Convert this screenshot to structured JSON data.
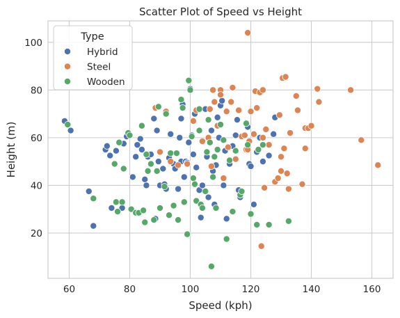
{
  "chart_data": {
    "type": "scatter",
    "title": "Scatter Plot of Speed vs Height",
    "xlabel": "Speed (kph)",
    "ylabel": "Height (m)",
    "xlim": [
      53,
      167
    ],
    "ylim": [
      1,
      109
    ],
    "xticks": [
      60,
      80,
      100,
      120,
      140,
      160
    ],
    "yticks": [
      20,
      40,
      60,
      80,
      100
    ],
    "grid": true,
    "legend": {
      "title": "Type",
      "placement": "top-left"
    },
    "series": [
      {
        "name": "Hybrid",
        "color": "#4c72b0",
        "points": [
          [
            58.5,
            67
          ],
          [
            60.5,
            63
          ],
          [
            66.5,
            37.5
          ],
          [
            68,
            23
          ],
          [
            72,
            55
          ],
          [
            72.5,
            56.5
          ],
          [
            73.5,
            52.5
          ],
          [
            74,
            30.5
          ],
          [
            75.5,
            54.5
          ],
          [
            77.5,
            30.5
          ],
          [
            78,
            57.5
          ],
          [
            79,
            60.5
          ],
          [
            81,
            43.5
          ],
          [
            82.5,
            57
          ],
          [
            82,
            52
          ],
          [
            83.5,
            59.5
          ],
          [
            84,
            55
          ],
          [
            85,
            42.5
          ],
          [
            85.5,
            40
          ],
          [
            86,
            52
          ],
          [
            87,
            53
          ],
          [
            88.5,
            26
          ],
          [
            89,
            63
          ],
          [
            89.5,
            50
          ],
          [
            90,
            40
          ],
          [
            91,
            47
          ],
          [
            91.5,
            40.5
          ],
          [
            92,
            38.5
          ],
          [
            93,
            51.5
          ],
          [
            93.5,
            61.5
          ],
          [
            94.5,
            49
          ],
          [
            95,
            47
          ],
          [
            96,
            38.5
          ],
          [
            96.5,
            60
          ],
          [
            97,
            50
          ],
          [
            97,
            68
          ],
          [
            97.5,
            74
          ],
          [
            98,
            43.5
          ],
          [
            98.5,
            50
          ],
          [
            99,
            49.5
          ],
          [
            99.5,
            58
          ],
          [
            100,
            80.5
          ],
          [
            100.5,
            61
          ],
          [
            101,
            53
          ],
          [
            101.5,
            70
          ],
          [
            102,
            47.5
          ],
          [
            103,
            38
          ],
          [
            103.5,
            26.5
          ],
          [
            104,
            40
          ],
          [
            105,
            72
          ],
          [
            105.5,
            52
          ],
          [
            106,
            35
          ],
          [
            107,
            63
          ],
          [
            107.5,
            46
          ],
          [
            108,
            32
          ],
          [
            108.5,
            48.5
          ],
          [
            109,
            68.5
          ],
          [
            109.5,
            60
          ],
          [
            110,
            73.5
          ],
          [
            110.5,
            75.5
          ],
          [
            111,
            40
          ],
          [
            111.5,
            54.5
          ],
          [
            112,
            26
          ],
          [
            113,
            49
          ],
          [
            114,
            56.5
          ],
          [
            115,
            61
          ],
          [
            116,
            38
          ],
          [
            116.5,
            35
          ],
          [
            119,
            64.5
          ],
          [
            119.5,
            49
          ],
          [
            120,
            48
          ],
          [
            121,
            32
          ],
          [
            122,
            54
          ],
          [
            123,
            60
          ],
          [
            124,
            50
          ],
          [
            126,
            52.5
          ],
          [
            127.5,
            61.5
          ],
          [
            128,
            68.5
          ],
          [
            115.5,
            67.5
          ],
          [
            88,
            68
          ]
        ]
      },
      {
        "name": "Steel",
        "color": "#dd8452",
        "points": [
          [
            88.5,
            72.5
          ],
          [
            90,
            54
          ],
          [
            92,
            71
          ],
          [
            93.5,
            50
          ],
          [
            96,
            48.5
          ],
          [
            99,
            49
          ],
          [
            101,
            67
          ],
          [
            102,
            71.5
          ],
          [
            104,
            58.5
          ],
          [
            106,
            60
          ],
          [
            106.5,
            72
          ],
          [
            107,
            48
          ],
          [
            107.5,
            80
          ],
          [
            108,
            75
          ],
          [
            109,
            65
          ],
          [
            110,
            80
          ],
          [
            110,
            78
          ],
          [
            111,
            43
          ],
          [
            112,
            71
          ],
          [
            112.5,
            56
          ],
          [
            113.5,
            75
          ],
          [
            114,
            81
          ],
          [
            115,
            51
          ],
          [
            116,
            71.5
          ],
          [
            117,
            60.5
          ],
          [
            118,
            61
          ],
          [
            118.5,
            55
          ],
          [
            119,
            104
          ],
          [
            119.5,
            58.5
          ],
          [
            120,
            71
          ],
          [
            121,
            61.5
          ],
          [
            121.5,
            79.5
          ],
          [
            122,
            72.5
          ],
          [
            123,
            79
          ],
          [
            123.5,
            14.5
          ],
          [
            124,
            80
          ],
          [
            124.5,
            39
          ],
          [
            125,
            63.5
          ],
          [
            126,
            57
          ],
          [
            128,
            41.5
          ],
          [
            129,
            43
          ],
          [
            130,
            52
          ],
          [
            130,
            46
          ],
          [
            130.5,
            85
          ],
          [
            131,
            55.5
          ],
          [
            131.5,
            85.5
          ],
          [
            132,
            45
          ],
          [
            132.5,
            38.5
          ],
          [
            133,
            62
          ],
          [
            135,
            77.5
          ],
          [
            135.5,
            71.5
          ],
          [
            137,
            40.5
          ],
          [
            138,
            64
          ],
          [
            138,
            55.5
          ],
          [
            139,
            64
          ],
          [
            140,
            65
          ],
          [
            142,
            80.5
          ],
          [
            142.5,
            75
          ],
          [
            153,
            80
          ],
          [
            156.5,
            59
          ],
          [
            162,
            48.5
          ],
          [
            124,
            60
          ],
          [
            119,
            55
          ],
          [
            129.5,
            69.5
          ]
        ]
      },
      {
        "name": "Wooden",
        "color": "#55a868",
        "points": [
          [
            59.5,
            65.5
          ],
          [
            68,
            34.5
          ],
          [
            75,
            49
          ],
          [
            75.5,
            33
          ],
          [
            76,
            29
          ],
          [
            76.5,
            58
          ],
          [
            77.5,
            33
          ],
          [
            78,
            47
          ],
          [
            79.5,
            62
          ],
          [
            80,
            61
          ],
          [
            80.5,
            30
          ],
          [
            82,
            28.5
          ],
          [
            83,
            28.5
          ],
          [
            84,
            65
          ],
          [
            84.5,
            29.5
          ],
          [
            85,
            24.5
          ],
          [
            85.5,
            53
          ],
          [
            86,
            46
          ],
          [
            87,
            49
          ],
          [
            88,
            25.5
          ],
          [
            89,
            46
          ],
          [
            90,
            30.5
          ],
          [
            91.5,
            39.5
          ],
          [
            92,
            70
          ],
          [
            93,
            27.5
          ],
          [
            93.5,
            53.5
          ],
          [
            94.5,
            31.5
          ],
          [
            95.5,
            53.5
          ],
          [
            96,
            25.5
          ],
          [
            97,
            76
          ],
          [
            97.5,
            72.5
          ],
          [
            98,
            33
          ],
          [
            99,
            19.5
          ],
          [
            99.5,
            84
          ],
          [
            100,
            80
          ],
          [
            100.5,
            60.5
          ],
          [
            101,
            43
          ],
          [
            101.5,
            40.5
          ],
          [
            102,
            33.5
          ],
          [
            103,
            63
          ],
          [
            103.5,
            32
          ],
          [
            104,
            30.5
          ],
          [
            105,
            37.5
          ],
          [
            105.5,
            54
          ],
          [
            106,
            67.5
          ],
          [
            107,
            6
          ],
          [
            107.5,
            43.5
          ],
          [
            108,
            52
          ],
          [
            108.5,
            30.5
          ],
          [
            109,
            55
          ],
          [
            110,
            65.5
          ],
          [
            111,
            59
          ],
          [
            112,
            17.5
          ],
          [
            113,
            50.5
          ],
          [
            114,
            29
          ],
          [
            115,
            54.5
          ],
          [
            116.5,
            36
          ],
          [
            117,
            37.5
          ],
          [
            118.5,
            66
          ],
          [
            119,
            57
          ],
          [
            120,
            28
          ],
          [
            122,
            23.5
          ],
          [
            122.5,
            55
          ],
          [
            124,
            57
          ],
          [
            126,
            23.5
          ],
          [
            132.5,
            25
          ],
          [
            89.5,
            73
          ],
          [
            103,
            72
          ],
          [
            106.5,
            58
          ]
        ]
      }
    ]
  }
}
